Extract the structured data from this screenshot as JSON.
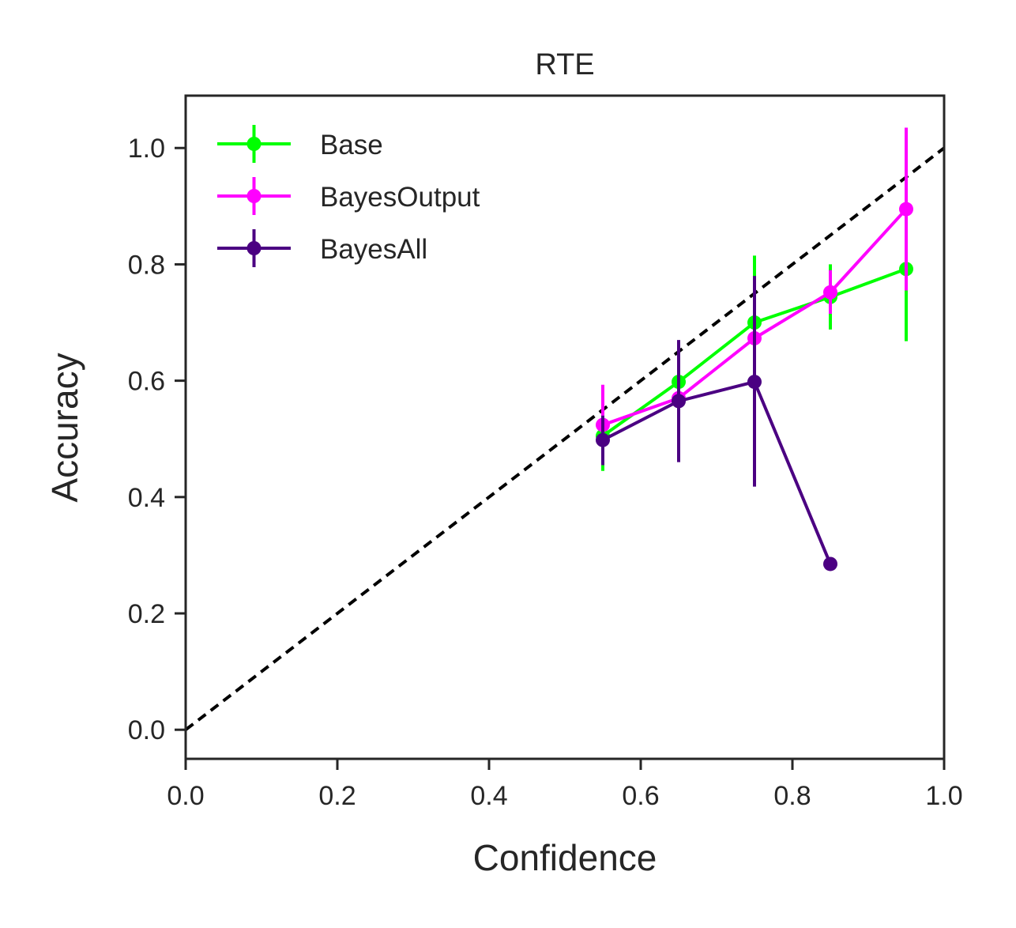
{
  "chart_data": {
    "type": "line",
    "title": "RTE",
    "xlabel": "Confidence",
    "ylabel": "Accuracy",
    "xlim": [
      0.0,
      1.0
    ],
    "ylim": [
      -0.05,
      1.09
    ],
    "xticks": [
      0.0,
      0.2,
      0.4,
      0.6,
      0.8,
      1.0
    ],
    "xtick_labels": [
      "0.0",
      "0.2",
      "0.4",
      "0.6",
      "0.8",
      "1.0"
    ],
    "yticks": [
      0.0,
      0.2,
      0.4,
      0.6,
      0.8,
      1.0
    ],
    "ytick_labels": [
      "0.0",
      "0.2",
      "0.4",
      "0.6",
      "0.8",
      "1.0"
    ],
    "grid": false,
    "legend_position": "top-left",
    "reference_line": {
      "style": "dashed",
      "color": "#000000",
      "from": [
        0.0,
        0.0
      ],
      "to": [
        1.0,
        1.0
      ]
    },
    "series": [
      {
        "name": "Base",
        "color": "#00ff00",
        "x": [
          0.55,
          0.65,
          0.75,
          0.85,
          0.95
        ],
        "y": [
          0.505,
          0.598,
          0.7,
          0.744,
          0.792
        ],
        "err_low": [
          0.445,
          0.585,
          0.695,
          0.688,
          0.668
        ],
        "err_high": [
          0.545,
          0.605,
          0.815,
          0.8,
          0.91
        ]
      },
      {
        "name": "BayesOutput",
        "color": "#ff00ff",
        "x": [
          0.55,
          0.65,
          0.75,
          0.85,
          0.95
        ],
        "y": [
          0.524,
          0.57,
          0.673,
          0.752,
          0.895
        ],
        "err_low": [
          0.455,
          0.555,
          0.66,
          0.715,
          0.755
        ],
        "err_high": [
          0.593,
          0.585,
          0.69,
          0.79,
          1.035
        ]
      },
      {
        "name": "BayesAll",
        "color": "#4b0082",
        "x": [
          0.55,
          0.65,
          0.75,
          0.85
        ],
        "y": [
          0.498,
          0.565,
          0.598,
          0.285
        ],
        "err_low": [
          0.455,
          0.46,
          0.418,
          0.285
        ],
        "err_high": [
          0.54,
          0.67,
          0.78,
          0.285
        ]
      }
    ]
  }
}
